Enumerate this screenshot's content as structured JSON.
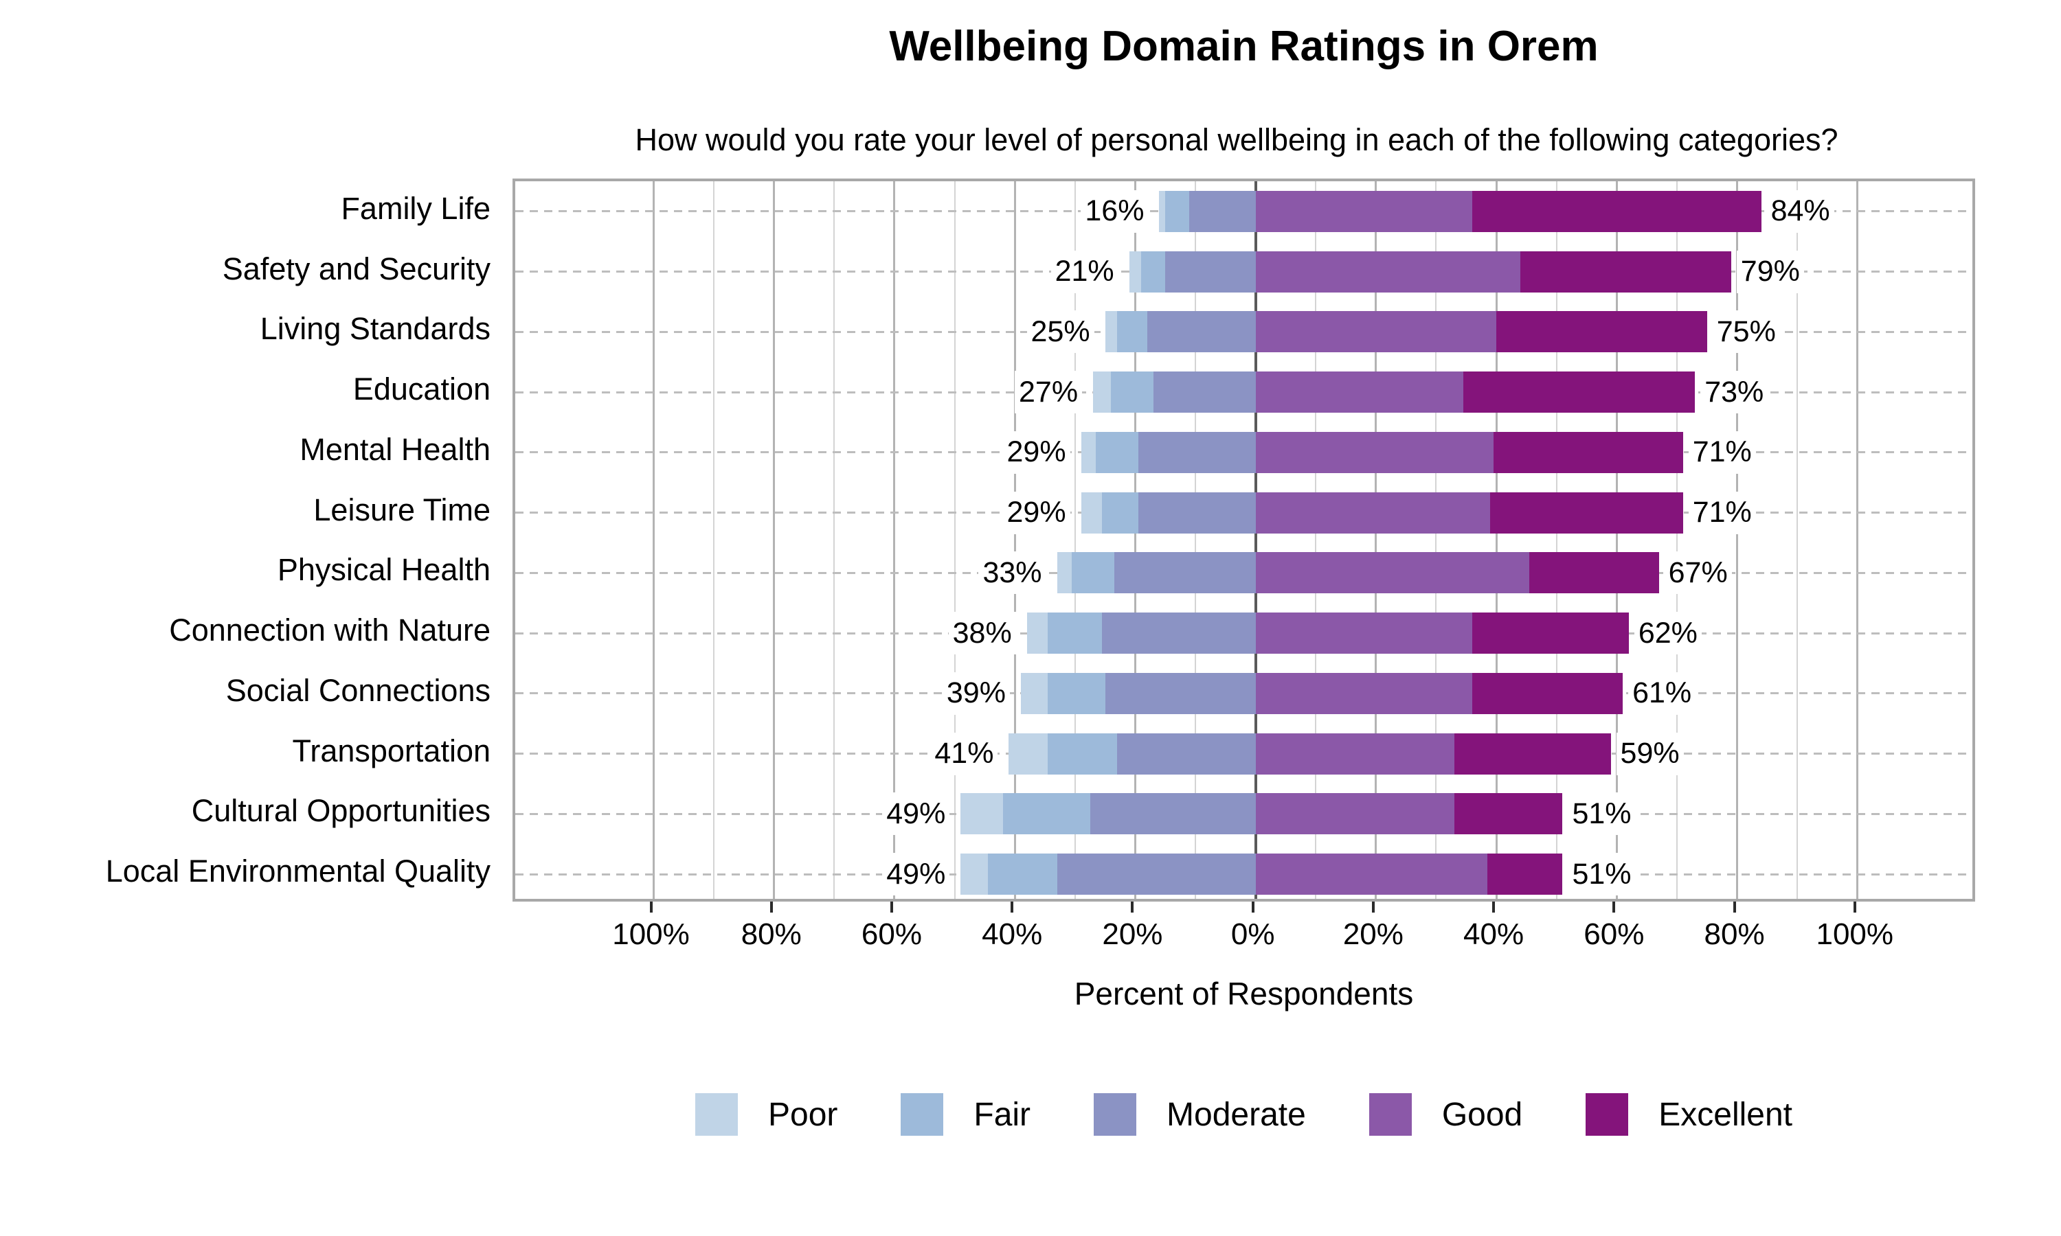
{
  "chart_data": {
    "type": "diverging_stacked_bar",
    "title": "Wellbeing Domain Ratings in Orem",
    "subtitle": "How would you rate your level of personal wellbeing in each of the following categories?",
    "xlabel": "Percent of Respondents",
    "categories": [
      "Family Life",
      "Safety and Security",
      "Living Standards",
      "Education",
      "Mental Health",
      "Leisure Time",
      "Physical Health",
      "Connection with Nature",
      "Social Connections",
      "Transportation",
      "Cultural Opportunities",
      "Local Environmental Quality"
    ],
    "left_total_labels": [
      "16%",
      "21%",
      "25%",
      "27%",
      "29%",
      "29%",
      "33%",
      "38%",
      "39%",
      "41%",
      "49%",
      "49%"
    ],
    "right_total_labels": [
      "84%",
      "79%",
      "75%",
      "73%",
      "71%",
      "71%",
      "67%",
      "62%",
      "61%",
      "59%",
      "51%",
      "51%"
    ],
    "series": [
      {
        "name": "Poor",
        "color": "#c0d4e7",
        "side": "left",
        "values": [
          1,
          2,
          2,
          3,
          2.5,
          3.5,
          2.5,
          3.5,
          4.5,
          6.5,
          7,
          4.5
        ]
      },
      {
        "name": "Fair",
        "color": "#9dbada",
        "side": "left",
        "values": [
          4,
          4,
          5,
          7,
          7,
          6,
          7,
          9,
          9.5,
          11.5,
          14.5,
          11.5
        ]
      },
      {
        "name": "Moderate",
        "color": "#8b93c4",
        "side": "left",
        "values": [
          11,
          15,
          18,
          17,
          19.5,
          19.5,
          23.5,
          25.5,
          25,
          23,
          27.5,
          33
        ]
      },
      {
        "name": "Good",
        "color": "#8b58a8",
        "side": "right",
        "values": [
          36,
          44,
          40,
          34.5,
          39.5,
          39,
          45.5,
          36,
          36,
          33,
          33,
          38.5
        ]
      },
      {
        "name": "Excellent",
        "color": "#84147b",
        "side": "right",
        "values": [
          48,
          35,
          35,
          38.5,
          31.5,
          32,
          21.5,
          26,
          25,
          26,
          18,
          12.5
        ]
      }
    ],
    "axis": {
      "xmin": -123,
      "xmax": 120,
      "tick_values": [
        -100,
        -80,
        -60,
        -40,
        -20,
        0,
        20,
        40,
        60,
        80,
        100
      ],
      "tick_labels": [
        "100%",
        "80%",
        "60%",
        "40%",
        "20%",
        "0%",
        "20%",
        "40%",
        "60%",
        "80%",
        "100%"
      ],
      "minor_grid_step": 10,
      "grid": true,
      "legend_position": "bottom"
    },
    "legend": [
      "Poor",
      "Fair",
      "Moderate",
      "Good",
      "Excellent"
    ]
  }
}
